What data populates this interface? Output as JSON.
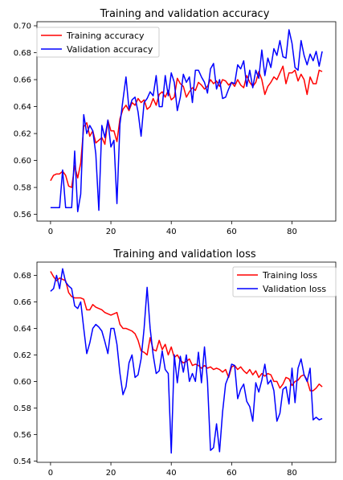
{
  "chart_data": [
    {
      "type": "line",
      "title": "Training and validation accuracy",
      "xlim": [
        -4.5,
        94.5
      ],
      "ylim": [
        0.555,
        0.703
      ],
      "x_ticks": [
        0,
        20,
        40,
        60,
        80
      ],
      "y_ticks": [
        0.56,
        0.58,
        0.6,
        0.62,
        0.64,
        0.66,
        0.68,
        0.7
      ],
      "y_tick_labels": [
        "0.56",
        "0.58",
        "0.60",
        "0.62",
        "0.64",
        "0.66",
        "0.68",
        "0.70"
      ],
      "legend_position": "upper-left",
      "series": [
        {
          "name": "Training accuracy",
          "color": "#ff0000",
          "values": [
            0.585,
            0.589,
            0.59,
            0.59,
            0.592,
            0.589,
            0.581,
            0.58,
            0.596,
            0.587,
            0.598,
            0.625,
            0.628,
            0.618,
            0.622,
            0.613,
            0.615,
            0.617,
            0.612,
            0.63,
            0.622,
            0.622,
            0.614,
            0.631,
            0.638,
            0.641,
            0.637,
            0.643,
            0.641,
            0.646,
            0.643,
            0.645,
            0.638,
            0.64,
            0.646,
            0.641,
            0.649,
            0.651,
            0.647,
            0.652,
            0.645,
            0.647,
            0.661,
            0.657,
            0.655,
            0.647,
            0.651,
            0.654,
            0.652,
            0.658,
            0.656,
            0.653,
            0.655,
            0.66,
            0.657,
            0.659,
            0.655,
            0.66,
            0.659,
            0.656,
            0.658,
            0.655,
            0.66,
            0.656,
            0.654,
            0.663,
            0.658,
            0.655,
            0.658,
            0.666,
            0.66,
            0.649,
            0.655,
            0.658,
            0.662,
            0.66,
            0.665,
            0.67,
            0.657,
            0.665,
            0.665,
            0.667,
            0.659,
            0.664,
            0.66,
            0.649,
            0.662,
            0.657,
            0.657,
            0.667,
            0.666
          ]
        },
        {
          "name": "Validation accuracy",
          "color": "#0000ff",
          "values": [
            0.565,
            0.565,
            0.565,
            0.565,
            0.593,
            0.565,
            0.565,
            0.565,
            0.607,
            0.562,
            0.575,
            0.634,
            0.62,
            0.626,
            0.622,
            0.605,
            0.563,
            0.626,
            0.617,
            0.63,
            0.61,
            0.615,
            0.568,
            0.627,
            0.645,
            0.662,
            0.638,
            0.645,
            0.647,
            0.636,
            0.618,
            0.643,
            0.646,
            0.651,
            0.648,
            0.663,
            0.64,
            0.64,
            0.663,
            0.648,
            0.665,
            0.658,
            0.637,
            0.647,
            0.664,
            0.658,
            0.662,
            0.643,
            0.667,
            0.667,
            0.662,
            0.658,
            0.65,
            0.668,
            0.672,
            0.653,
            0.66,
            0.646,
            0.647,
            0.653,
            0.658,
            0.657,
            0.671,
            0.668,
            0.674,
            0.655,
            0.667,
            0.654,
            0.667,
            0.661,
            0.682,
            0.663,
            0.676,
            0.669,
            0.683,
            0.678,
            0.689,
            0.677,
            0.676,
            0.697,
            0.687,
            0.669,
            0.667,
            0.689,
            0.678,
            0.671,
            0.679,
            0.674,
            0.681,
            0.67,
            0.681
          ]
        }
      ]
    },
    {
      "type": "line",
      "title": "Training and validation loss",
      "xlim": [
        -4.5,
        94.5
      ],
      "ylim": [
        0.539,
        0.69
      ],
      "x_ticks": [
        0,
        20,
        40,
        60,
        80
      ],
      "y_ticks": [
        0.54,
        0.56,
        0.58,
        0.6,
        0.62,
        0.64,
        0.66,
        0.68
      ],
      "y_tick_labels": [
        "0.54",
        "0.56",
        "0.58",
        "0.60",
        "0.62",
        "0.64",
        "0.66",
        "0.68"
      ],
      "legend_position": "upper-right",
      "series": [
        {
          "name": "Training loss",
          "color": "#ff0000",
          "values": [
            0.683,
            0.679,
            0.676,
            0.678,
            0.677,
            0.676,
            0.667,
            0.664,
            0.663,
            0.663,
            0.663,
            0.662,
            0.654,
            0.654,
            0.658,
            0.656,
            0.655,
            0.654,
            0.652,
            0.651,
            0.65,
            0.651,
            0.652,
            0.643,
            0.64,
            0.64,
            0.639,
            0.638,
            0.636,
            0.631,
            0.623,
            0.622,
            0.62,
            0.633,
            0.624,
            0.623,
            0.631,
            0.624,
            0.628,
            0.62,
            0.626,
            0.618,
            0.62,
            0.616,
            0.614,
            0.615,
            0.617,
            0.612,
            0.613,
            0.612,
            0.61,
            0.612,
            0.61,
            0.611,
            0.609,
            0.61,
            0.609,
            0.607,
            0.609,
            0.603,
            0.611,
            0.612,
            0.609,
            0.611,
            0.608,
            0.606,
            0.609,
            0.605,
            0.608,
            0.603,
            0.606,
            0.604,
            0.606,
            0.605,
            0.6,
            0.6,
            0.595,
            0.598,
            0.603,
            0.602,
            0.597,
            0.6,
            0.601,
            0.604,
            0.605,
            0.601,
            0.593,
            0.593,
            0.595,
            0.598,
            0.596
          ]
        },
        {
          "name": "Validation loss",
          "color": "#0000ff",
          "values": [
            0.668,
            0.67,
            0.68,
            0.67,
            0.685,
            0.675,
            0.672,
            0.67,
            0.657,
            0.655,
            0.66,
            0.64,
            0.621,
            0.629,
            0.64,
            0.643,
            0.641,
            0.638,
            0.63,
            0.621,
            0.64,
            0.64,
            0.628,
            0.606,
            0.59,
            0.596,
            0.614,
            0.62,
            0.603,
            0.605,
            0.617,
            0.64,
            0.671,
            0.64,
            0.62,
            0.606,
            0.608,
            0.623,
            0.609,
            0.606,
            0.546,
            0.62,
            0.599,
            0.619,
            0.607,
            0.62,
            0.6,
            0.606,
            0.6,
            0.622,
            0.599,
            0.626,
            0.6,
            0.548,
            0.55,
            0.568,
            0.547,
            0.577,
            0.598,
            0.604,
            0.613,
            0.612,
            0.587,
            0.594,
            0.598,
            0.585,
            0.581,
            0.57,
            0.599,
            0.592,
            0.601,
            0.613,
            0.598,
            0.601,
            0.593,
            0.57,
            0.576,
            0.594,
            0.596,
            0.583,
            0.61,
            0.584,
            0.61,
            0.617,
            0.605,
            0.6,
            0.61,
            0.571,
            0.573,
            0.571,
            0.572
          ]
        }
      ]
    }
  ]
}
